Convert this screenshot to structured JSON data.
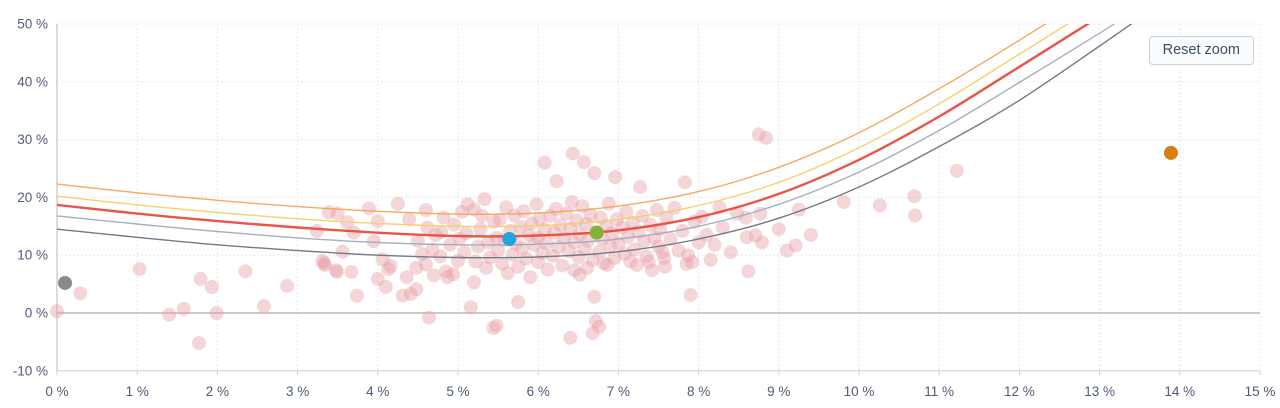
{
  "controls": {
    "reset_zoom_label": "Reset zoom"
  },
  "chart_data": {
    "type": "scatter",
    "title": "",
    "xlabel": "",
    "ylabel": "",
    "grid": true,
    "legend": "none",
    "x_axis": {
      "min": 0,
      "max": 15,
      "step": 1,
      "unit": "%",
      "tick_values": [
        0,
        1,
        2,
        3,
        4,
        5,
        6,
        7,
        8,
        9,
        10,
        11,
        12,
        13,
        14,
        15
      ],
      "tick_labels": [
        "0 %",
        "1 %",
        "2 %",
        "3 %",
        "4 %",
        "5 %",
        "6 %",
        "7 %",
        "8 %",
        "9 %",
        "10 %",
        "11 %",
        "12 %",
        "13 %",
        "14 %",
        "15 %"
      ]
    },
    "y_axis": {
      "min": -10,
      "max": 50,
      "step": 10,
      "unit": "%",
      "tick_values": [
        50,
        40,
        30,
        20,
        10,
        0,
        -10
      ],
      "tick_labels": [
        "50 %",
        "40 %",
        "30 %",
        "20 %",
        "10 %",
        "0 %",
        "-10 %"
      ]
    },
    "zero_line": {
      "value": 0,
      "color": "#ababab"
    },
    "colors": {
      "grid": "#e8e8e8",
      "axis": "#cfcfcf",
      "label": "#4f5b76",
      "scatter": "rgba(228,157,165,0.42)"
    },
    "curves": [
      {
        "name": "upper-band-orange",
        "color": "#f3a45c",
        "width": 1.4,
        "x": [
          0,
          1,
          2,
          3,
          4,
          5,
          6,
          7,
          8,
          9,
          10,
          11,
          12,
          13,
          13.6
        ],
        "y": [
          22.3,
          20.8,
          19.5,
          18.4,
          17.6,
          17.1,
          17.3,
          18.5,
          21.0,
          25.2,
          31.2,
          38.8,
          47.2,
          56.0,
          61.5
        ]
      },
      {
        "name": "band-yellow",
        "color": "#f6cd66",
        "width": 1.4,
        "x": [
          0,
          1,
          2,
          3,
          4,
          5,
          6,
          7,
          8,
          9,
          10,
          11,
          12,
          13,
          13.6
        ],
        "y": [
          20.2,
          18.7,
          17.4,
          16.3,
          15.5,
          15.0,
          15.1,
          16.2,
          18.6,
          22.6,
          28.6,
          36.2,
          44.8,
          53.5,
          59.0
        ]
      },
      {
        "name": "expected-red",
        "color": "#e94c3d",
        "width": 2.4,
        "x": [
          0,
          1,
          2,
          3,
          4,
          5,
          6,
          7,
          8,
          9,
          10,
          11,
          12,
          13,
          13.6
        ],
        "y": [
          18.7,
          17.2,
          15.9,
          14.8,
          13.9,
          13.3,
          13.4,
          14.3,
          16.6,
          20.6,
          26.5,
          34.0,
          42.6,
          51.3,
          56.8
        ]
      },
      {
        "name": "band-light-slate",
        "color": "#9dacbd",
        "width": 1.4,
        "x": [
          0,
          1,
          2,
          3,
          4,
          5,
          6,
          7,
          8,
          9,
          10,
          11,
          12,
          13,
          13.6
        ],
        "y": [
          16.8,
          15.4,
          14.1,
          13.0,
          12.2,
          11.8,
          11.9,
          12.8,
          15.0,
          18.8,
          24.4,
          31.6,
          39.9,
          48.4,
          53.8
        ]
      },
      {
        "name": "lower-band-dark-slate",
        "color": "#6a7380",
        "width": 1.4,
        "x": [
          0,
          1,
          2,
          3,
          4,
          5,
          6,
          7,
          8,
          9,
          10,
          11,
          12,
          13,
          13.6
        ],
        "y": [
          14.5,
          13.1,
          11.8,
          10.8,
          10.0,
          9.6,
          9.7,
          10.6,
          12.8,
          16.4,
          21.8,
          28.8,
          36.8,
          46.2,
          52.0
        ]
      }
    ],
    "scatter_points": [
      [
        0.0,
        0.3
      ],
      [
        0.29,
        3.4
      ],
      [
        1.03,
        7.6
      ],
      [
        1.4,
        -0.3
      ],
      [
        1.58,
        0.7
      ],
      [
        1.77,
        -5.2
      ],
      [
        1.79,
        5.9
      ],
      [
        1.93,
        4.5
      ],
      [
        1.99,
        0.0
      ],
      [
        2.35,
        7.2
      ],
      [
        2.58,
        1.2
      ],
      [
        2.87,
        4.7
      ],
      [
        3.24,
        14.2
      ],
      [
        3.31,
        9.0
      ],
      [
        3.33,
        8.6
      ],
      [
        3.34,
        8.3
      ],
      [
        3.39,
        17.4
      ],
      [
        3.48,
        7.4
      ],
      [
        3.49,
        7.1
      ],
      [
        3.5,
        17.2
      ],
      [
        3.56,
        10.6
      ],
      [
        3.62,
        15.7
      ],
      [
        3.67,
        7.1
      ],
      [
        3.7,
        13.9
      ],
      [
        3.74,
        3.0
      ],
      [
        3.89,
        18.1
      ],
      [
        3.95,
        12.4
      ],
      [
        4.0,
        15.9
      ],
      [
        4.0,
        5.9
      ],
      [
        4.06,
        9.3
      ],
      [
        4.1,
        4.5
      ],
      [
        4.13,
        7.6
      ],
      [
        4.16,
        8.1
      ],
      [
        4.25,
        18.9
      ],
      [
        4.31,
        3.0
      ],
      [
        4.36,
        6.2
      ],
      [
        4.39,
        16.2
      ],
      [
        4.41,
        3.3
      ],
      [
        4.48,
        4.1
      ],
      [
        4.48,
        7.8
      ],
      [
        4.5,
        12.5
      ],
      [
        4.55,
        10.2
      ],
      [
        4.6,
        17.8
      ],
      [
        4.6,
        8.4
      ],
      [
        4.62,
        14.8
      ],
      [
        4.64,
        -0.8
      ],
      [
        4.68,
        11.0
      ],
      [
        4.7,
        6.5
      ],
      [
        4.72,
        13.5
      ],
      [
        4.78,
        9.8
      ],
      [
        4.79,
        14.0
      ],
      [
        4.82,
        16.5
      ],
      [
        4.85,
        7.2
      ],
      [
        4.87,
        6.2
      ],
      [
        4.9,
        11.8
      ],
      [
        4.94,
        6.7
      ],
      [
        4.95,
        15.3
      ],
      [
        5.0,
        9.0
      ],
      [
        5.02,
        12.8
      ],
      [
        5.05,
        17.5
      ],
      [
        5.08,
        10.5
      ],
      [
        5.1,
        13.8
      ],
      [
        5.12,
        18.8
      ],
      [
        5.16,
        1.0
      ],
      [
        5.2,
        17.9
      ],
      [
        5.2,
        5.3
      ],
      [
        5.22,
        8.9
      ],
      [
        5.25,
        11.5
      ],
      [
        5.28,
        14.5
      ],
      [
        5.3,
        16.8
      ],
      [
        5.33,
        19.7
      ],
      [
        5.35,
        7.8
      ],
      [
        5.38,
        12.2
      ],
      [
        5.4,
        9.6
      ],
      [
        5.44,
        -2.6
      ],
      [
        5.45,
        15.8
      ],
      [
        5.48,
        -2.2
      ],
      [
        5.48,
        13.0
      ],
      [
        5.5,
        10.8
      ],
      [
        5.52,
        16.2
      ],
      [
        5.55,
        8.5
      ],
      [
        5.58,
        12.6
      ],
      [
        5.6,
        18.3
      ],
      [
        5.62,
        6.9
      ],
      [
        5.65,
        14.2
      ],
      [
        5.68,
        10.1
      ],
      [
        5.7,
        16.9
      ],
      [
        5.72,
        12.0
      ],
      [
        5.75,
        1.9
      ],
      [
        5.75,
        8.0
      ],
      [
        5.78,
        14.9
      ],
      [
        5.8,
        11.2
      ],
      [
        5.82,
        17.6
      ],
      [
        5.85,
        9.4
      ],
      [
        5.88,
        13.5
      ],
      [
        5.9,
        6.2
      ],
      [
        5.92,
        15.5
      ],
      [
        5.95,
        11.8
      ],
      [
        5.98,
        18.8
      ],
      [
        6.0,
        8.8
      ],
      [
        6.0,
        13.0
      ],
      [
        6.02,
        16.3
      ],
      [
        6.05,
        10.4
      ],
      [
        6.08,
        26.0
      ],
      [
        6.08,
        14.4
      ],
      [
        6.1,
        12.1
      ],
      [
        6.12,
        7.5
      ],
      [
        6.15,
        16.8
      ],
      [
        6.18,
        9.9
      ],
      [
        6.2,
        13.9
      ],
      [
        6.22,
        18.0
      ],
      [
        6.23,
        22.8
      ],
      [
        6.25,
        11.4
      ],
      [
        6.28,
        15.2
      ],
      [
        6.3,
        8.2
      ],
      [
        6.32,
        12.9
      ],
      [
        6.35,
        17.2
      ],
      [
        6.38,
        10.7
      ],
      [
        6.4,
        -4.3
      ],
      [
        6.4,
        14.6
      ],
      [
        6.42,
        19.2
      ],
      [
        6.43,
        27.6
      ],
      [
        6.45,
        7.4
      ],
      [
        6.45,
        12.2
      ],
      [
        6.48,
        16.0
      ],
      [
        6.5,
        9.7
      ],
      [
        6.52,
        6.6
      ],
      [
        6.52,
        13.6
      ],
      [
        6.55,
        18.5
      ],
      [
        6.57,
        26.1
      ],
      [
        6.58,
        11.0
      ],
      [
        6.6,
        15.4
      ],
      [
        6.61,
        7.8
      ],
      [
        6.62,
        12.5
      ],
      [
        6.65,
        17.0
      ],
      [
        6.68,
        -3.5
      ],
      [
        6.68,
        9.2
      ],
      [
        6.7,
        2.8
      ],
      [
        6.7,
        24.2
      ],
      [
        6.72,
        -1.4
      ],
      [
        6.72,
        14.0
      ],
      [
        6.76,
        -2.4
      ],
      [
        6.76,
        10.6
      ],
      [
        6.78,
        16.5
      ],
      [
        6.8,
        12.8
      ],
      [
        6.82,
        8.6
      ],
      [
        6.85,
        15.0
      ],
      [
        6.86,
        8.3
      ],
      [
        6.88,
        18.9
      ],
      [
        6.9,
        11.6
      ],
      [
        6.92,
        13.8
      ],
      [
        6.95,
        9.5
      ],
      [
        6.96,
        23.5
      ],
      [
        6.98,
        16.2
      ],
      [
        7.0,
        12.0
      ],
      [
        7.05,
        14.8
      ],
      [
        7.08,
        10.2
      ],
      [
        7.1,
        17.5
      ],
      [
        7.12,
        13.2
      ],
      [
        7.15,
        8.9
      ],
      [
        7.18,
        15.6
      ],
      [
        7.2,
        11.0
      ],
      [
        7.23,
        8.3
      ],
      [
        7.25,
        14.0
      ],
      [
        7.27,
        21.8
      ],
      [
        7.3,
        16.8
      ],
      [
        7.32,
        12.4
      ],
      [
        7.35,
        9.8
      ],
      [
        7.38,
        8.8
      ],
      [
        7.4,
        15.2
      ],
      [
        7.42,
        7.4
      ],
      [
        7.45,
        13.0
      ],
      [
        7.48,
        17.8
      ],
      [
        7.5,
        11.5
      ],
      [
        7.52,
        14.5
      ],
      [
        7.55,
        10.5
      ],
      [
        7.57,
        9.5
      ],
      [
        7.58,
        8.0
      ],
      [
        7.6,
        16.5
      ],
      [
        7.65,
        12.8
      ],
      [
        7.7,
        18.2
      ],
      [
        7.75,
        10.8
      ],
      [
        7.8,
        14.2
      ],
      [
        7.83,
        22.6
      ],
      [
        7.85,
        8.5
      ],
      [
        7.87,
        10.0
      ],
      [
        7.9,
        3.1
      ],
      [
        7.92,
        8.8
      ],
      [
        7.95,
        15.8
      ],
      [
        8.0,
        12.2
      ],
      [
        8.04,
        16.7
      ],
      [
        8.1,
        13.5
      ],
      [
        8.15,
        9.2
      ],
      [
        8.2,
        11.8
      ],
      [
        8.26,
        18.3
      ],
      [
        8.3,
        14.8
      ],
      [
        8.4,
        10.5
      ],
      [
        8.48,
        17.2
      ],
      [
        8.59,
        16.5
      ],
      [
        8.6,
        13.1
      ],
      [
        8.62,
        7.2
      ],
      [
        8.71,
        13.4
      ],
      [
        8.75,
        30.9
      ],
      [
        8.77,
        17.2
      ],
      [
        8.79,
        12.2
      ],
      [
        8.84,
        30.3
      ],
      [
        9.0,
        14.5
      ],
      [
        9.1,
        10.8
      ],
      [
        9.21,
        11.7
      ],
      [
        9.25,
        17.9
      ],
      [
        9.4,
        13.5
      ],
      [
        9.81,
        19.2
      ],
      [
        10.26,
        18.6
      ],
      [
        10.69,
        20.2
      ],
      [
        10.7,
        16.9
      ],
      [
        11.22,
        24.6
      ]
    ],
    "highlight_points": [
      {
        "name": "gray-point",
        "color": "#8a8a8a",
        "x": 0.1,
        "y": 5.2
      },
      {
        "name": "blue-point",
        "color": "#27a2da",
        "x": 5.64,
        "y": 12.8
      },
      {
        "name": "green-point",
        "color": "#82b437",
        "x": 6.73,
        "y": 13.9
      },
      {
        "name": "orange-point",
        "color": "#d87d0e",
        "x": 13.89,
        "y": 27.7
      }
    ]
  }
}
